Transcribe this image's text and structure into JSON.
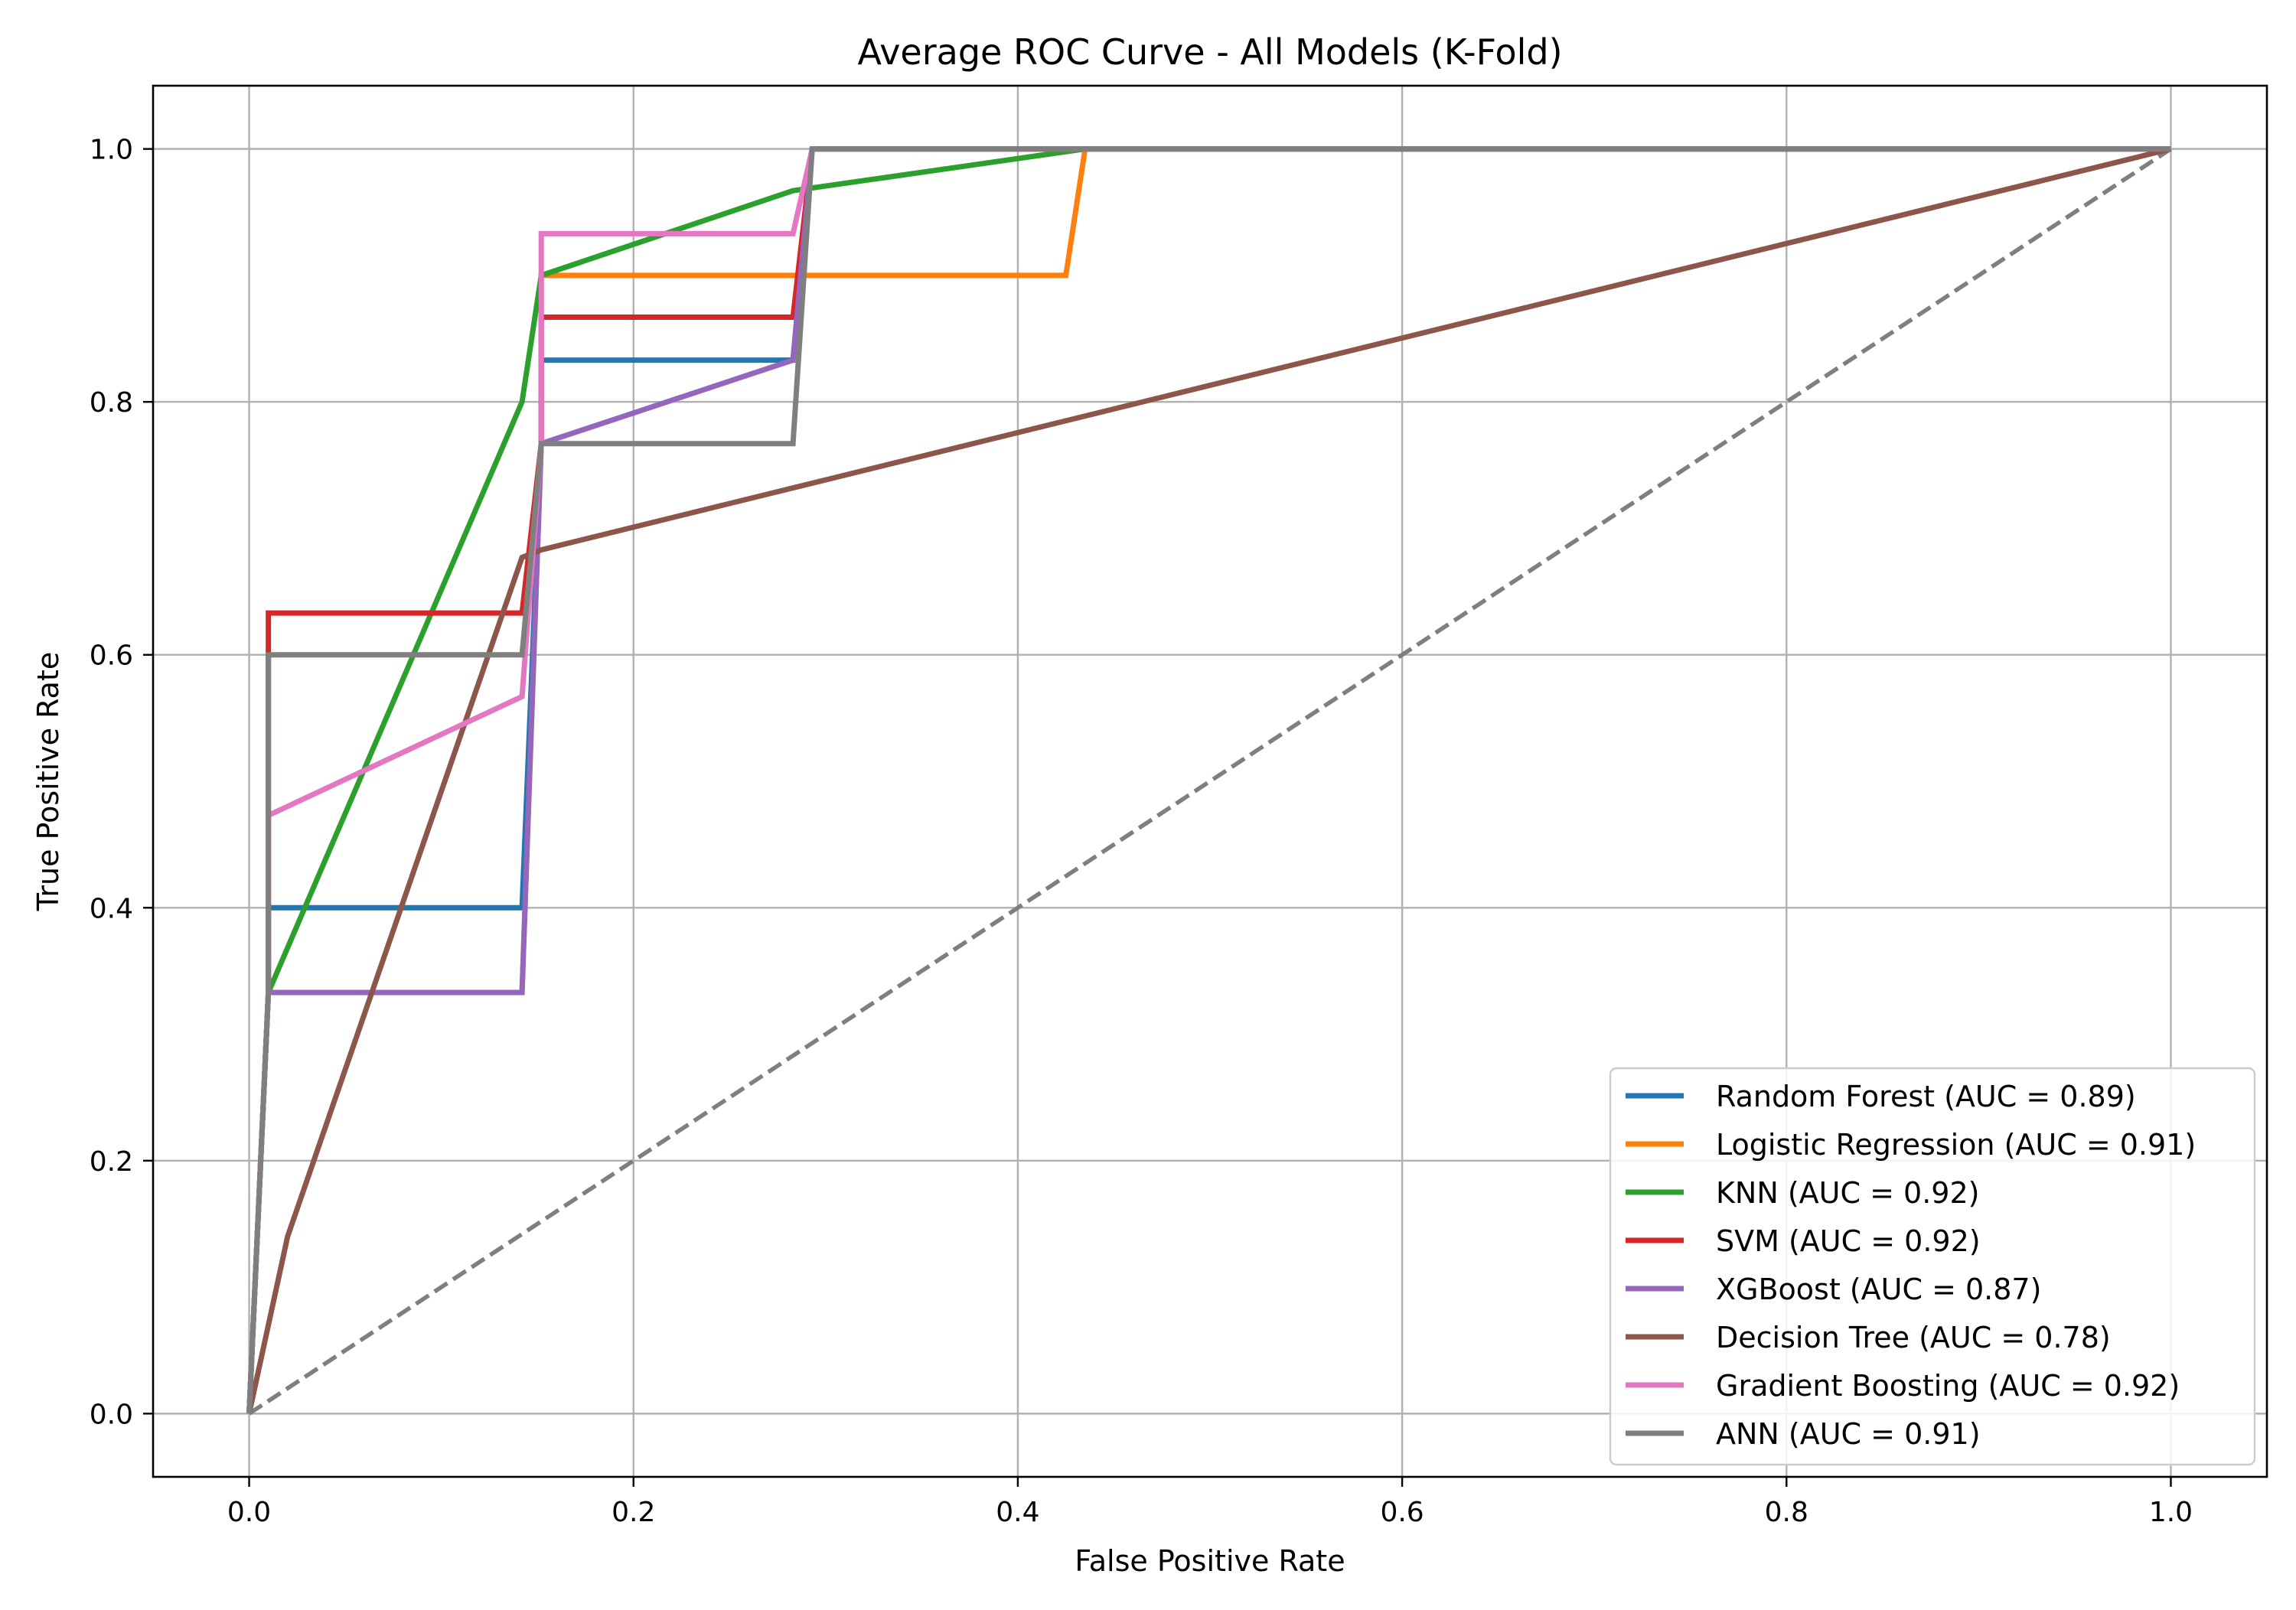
{
  "chart_data": {
    "type": "line",
    "title": "Average ROC Curve - All Models (K-Fold)",
    "xlabel": "False Positive Rate",
    "ylabel": "True Positive Rate",
    "xlim": [
      -0.05,
      1.05
    ],
    "ylim": [
      -0.05,
      1.05
    ],
    "xticks": [
      0.0,
      0.2,
      0.4,
      0.6,
      0.8,
      1.0
    ],
    "yticks": [
      0.0,
      0.2,
      0.4,
      0.6,
      0.8,
      1.0
    ],
    "xtick_labels": [
      "0.0",
      "0.2",
      "0.4",
      "0.6",
      "0.8",
      "1.0"
    ],
    "ytick_labels": [
      "0.0",
      "0.2",
      "0.4",
      "0.6",
      "0.8",
      "1.0"
    ],
    "grid": true,
    "legend_position": "lower-right",
    "series": [
      {
        "name": "Random Forest (AUC = 0.89)",
        "color": "#1f77b4",
        "x": [
          0.0,
          0.01,
          0.01,
          0.142,
          0.152,
          0.152,
          0.283,
          0.293,
          1.0
        ],
        "y": [
          0.0,
          0.333,
          0.4,
          0.4,
          0.767,
          0.833,
          0.833,
          1.0,
          1.0
        ]
      },
      {
        "name": "Logistic Regression (AUC = 0.91)",
        "color": "#ff7f0e",
        "x": [
          0.0,
          0.01,
          0.01,
          0.142,
          0.152,
          0.152,
          0.425,
          0.435,
          1.0
        ],
        "y": [
          0.0,
          0.333,
          0.333,
          0.333,
          0.767,
          0.9,
          0.9,
          1.0,
          1.0
        ]
      },
      {
        "name": "KNN (AUC = 0.92)",
        "color": "#2ca02c",
        "x": [
          0.0,
          0.01,
          0.142,
          0.152,
          0.283,
          0.435,
          1.0
        ],
        "y": [
          0.0,
          0.333,
          0.8,
          0.9,
          0.967,
          1.0,
          1.0
        ]
      },
      {
        "name": "SVM (AUC = 0.92)",
        "color": "#d62728",
        "x": [
          0.0,
          0.01,
          0.01,
          0.142,
          0.152,
          0.152,
          0.283,
          0.293,
          1.0
        ],
        "y": [
          0.0,
          0.333,
          0.633,
          0.633,
          0.767,
          0.867,
          0.867,
          1.0,
          1.0
        ]
      },
      {
        "name": "XGBoost (AUC = 0.87)",
        "color": "#9467bd",
        "x": [
          0.0,
          0.01,
          0.142,
          0.152,
          0.283,
          0.293,
          1.0
        ],
        "y": [
          0.0,
          0.333,
          0.333,
          0.767,
          0.833,
          1.0,
          1.0
        ]
      },
      {
        "name": "Decision Tree (AUC = 0.78)",
        "color": "#8c564b",
        "x": [
          0.0,
          0.02,
          0.142,
          0.152,
          1.0
        ],
        "y": [
          0.0,
          0.14,
          0.677,
          0.683,
          1.0
        ]
      },
      {
        "name": "Gradient Boosting (AUC = 0.92)",
        "color": "#e377c2",
        "x": [
          0.0,
          0.01,
          0.01,
          0.142,
          0.152,
          0.152,
          0.283,
          0.293,
          1.0
        ],
        "y": [
          0.0,
          0.333,
          0.473,
          0.567,
          0.767,
          0.933,
          0.933,
          1.0,
          1.0
        ]
      },
      {
        "name": "ANN (AUC = 0.91)",
        "color": "#7f7f7f",
        "x": [
          0.0,
          0.01,
          0.01,
          0.142,
          0.152,
          0.152,
          0.283,
          0.293,
          1.0
        ],
        "y": [
          0.0,
          0.333,
          0.6,
          0.6,
          0.767,
          0.767,
          0.767,
          1.0,
          1.0
        ]
      }
    ],
    "reference_line": {
      "x": [
        0.0,
        1.0
      ],
      "y": [
        0.0,
        1.0
      ],
      "color": "#7f7f7f",
      "style": "dashed"
    }
  }
}
